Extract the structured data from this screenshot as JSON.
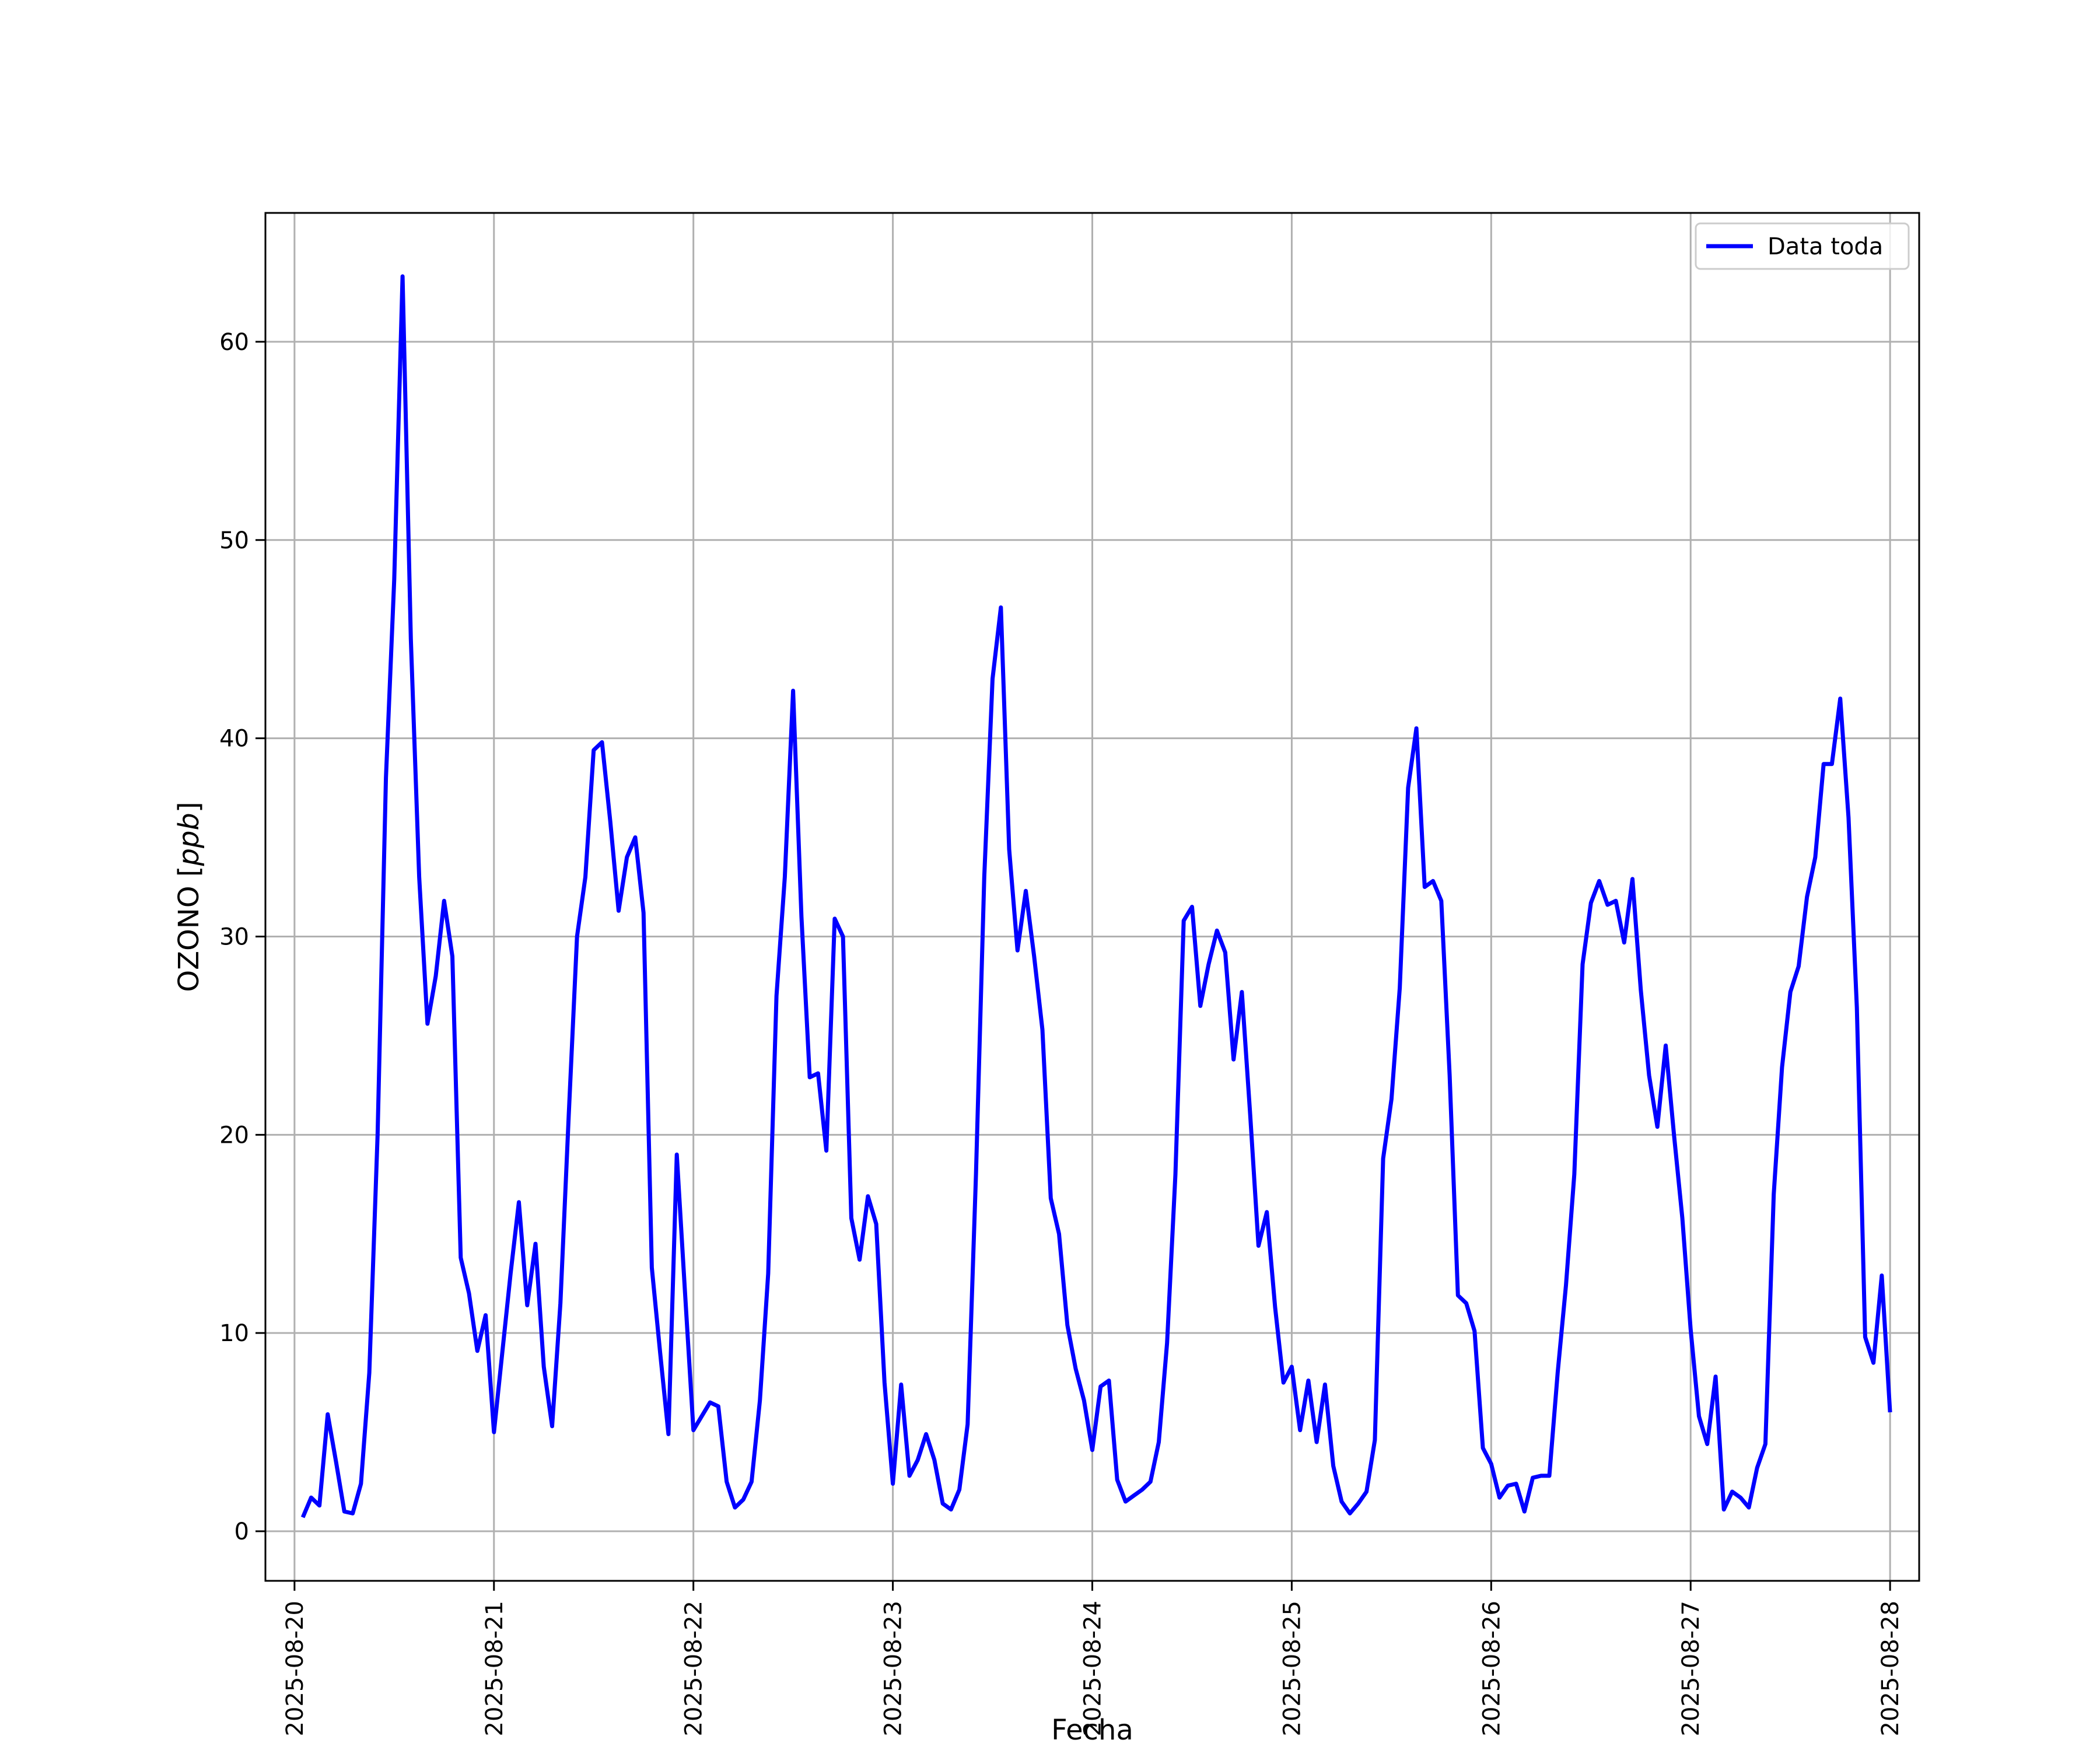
{
  "chart_data": {
    "type": "line",
    "title": "",
    "xlabel": "Fecha",
    "ylabel_prefix": "OZONO [",
    "ylabel_unit": "ppb",
    "ylabel_suffix": "]",
    "xlim": [
      "2025-08-19 20:30",
      "2025-08-28 03:30"
    ],
    "ylim": [
      -2.5,
      66.5
    ],
    "yticks": [
      0,
      10,
      20,
      30,
      40,
      50,
      60
    ],
    "xticks": [
      "2025-08-20",
      "2025-08-21",
      "2025-08-22",
      "2025-08-23",
      "2025-08-24",
      "2025-08-25",
      "2025-08-26",
      "2025-08-27",
      "2025-08-28"
    ],
    "grid": true,
    "legend": {
      "position": "top-right",
      "entries": [
        "Data toda"
      ]
    },
    "series": [
      {
        "name": "Data toda",
        "color": "#0000ff",
        "x": [
          "2025-08-20 01:00",
          "2025-08-20 02:00",
          "2025-08-20 03:00",
          "2025-08-20 04:00",
          "2025-08-20 05:00",
          "2025-08-20 06:00",
          "2025-08-20 07:00",
          "2025-08-20 08:00",
          "2025-08-20 09:00",
          "2025-08-20 10:00",
          "2025-08-20 11:00",
          "2025-08-20 12:00",
          "2025-08-20 13:00",
          "2025-08-20 14:00",
          "2025-08-20 15:00",
          "2025-08-20 16:00",
          "2025-08-20 17:00",
          "2025-08-20 18:00",
          "2025-08-20 19:00",
          "2025-08-20 20:00",
          "2025-08-20 21:00",
          "2025-08-20 22:00",
          "2025-08-20 23:00",
          "2025-08-21 00:00",
          "2025-08-21 01:00",
          "2025-08-21 02:00",
          "2025-08-21 03:00",
          "2025-08-21 04:00",
          "2025-08-21 05:00",
          "2025-08-21 06:00",
          "2025-08-21 07:00",
          "2025-08-21 08:00",
          "2025-08-21 09:00",
          "2025-08-21 10:00",
          "2025-08-21 11:00",
          "2025-08-21 12:00",
          "2025-08-21 13:00",
          "2025-08-21 14:00",
          "2025-08-21 15:00",
          "2025-08-21 16:00",
          "2025-08-21 17:00",
          "2025-08-21 18:00",
          "2025-08-21 19:00",
          "2025-08-21 20:00",
          "2025-08-21 21:00",
          "2025-08-21 22:00",
          "2025-08-21 23:00",
          "2025-08-22 00:00",
          "2025-08-22 01:00",
          "2025-08-22 02:00",
          "2025-08-22 03:00",
          "2025-08-22 04:00",
          "2025-08-22 05:00",
          "2025-08-22 06:00",
          "2025-08-22 07:00",
          "2025-08-22 08:00",
          "2025-08-22 09:00",
          "2025-08-22 10:00",
          "2025-08-22 11:00",
          "2025-08-22 12:00",
          "2025-08-22 13:00",
          "2025-08-22 14:00",
          "2025-08-22 15:00",
          "2025-08-22 16:00",
          "2025-08-22 17:00",
          "2025-08-22 18:00",
          "2025-08-22 19:00",
          "2025-08-22 20:00",
          "2025-08-22 21:00",
          "2025-08-22 22:00",
          "2025-08-22 23:00",
          "2025-08-23 00:00",
          "2025-08-23 01:00",
          "2025-08-23 02:00",
          "2025-08-23 03:00",
          "2025-08-23 04:00",
          "2025-08-23 05:00",
          "2025-08-23 06:00",
          "2025-08-23 07:00",
          "2025-08-23 08:00",
          "2025-08-23 09:00",
          "2025-08-23 10:00",
          "2025-08-23 11:00",
          "2025-08-23 12:00",
          "2025-08-23 13:00",
          "2025-08-23 14:00",
          "2025-08-23 15:00",
          "2025-08-23 16:00",
          "2025-08-23 17:00",
          "2025-08-23 18:00",
          "2025-08-23 19:00",
          "2025-08-23 20:00",
          "2025-08-23 21:00",
          "2025-08-23 22:00",
          "2025-08-23 23:00",
          "2025-08-24 00:00",
          "2025-08-24 01:00",
          "2025-08-24 02:00",
          "2025-08-24 03:00",
          "2025-08-24 04:00",
          "2025-08-24 05:00",
          "2025-08-24 06:00",
          "2025-08-24 07:00",
          "2025-08-24 08:00",
          "2025-08-24 09:00",
          "2025-08-24 10:00",
          "2025-08-24 11:00",
          "2025-08-24 12:00",
          "2025-08-24 13:00",
          "2025-08-24 14:00",
          "2025-08-24 15:00",
          "2025-08-24 16:00",
          "2025-08-24 17:00",
          "2025-08-24 18:00",
          "2025-08-24 19:00",
          "2025-08-24 20:00",
          "2025-08-24 21:00",
          "2025-08-24 22:00",
          "2025-08-24 23:00",
          "2025-08-25 00:00",
          "2025-08-25 01:00",
          "2025-08-25 02:00",
          "2025-08-25 03:00",
          "2025-08-25 04:00",
          "2025-08-25 05:00",
          "2025-08-25 06:00",
          "2025-08-25 07:00",
          "2025-08-25 08:00",
          "2025-08-25 09:00",
          "2025-08-25 10:00",
          "2025-08-25 11:00",
          "2025-08-25 12:00",
          "2025-08-25 13:00",
          "2025-08-25 14:00",
          "2025-08-25 15:00",
          "2025-08-25 16:00",
          "2025-08-25 17:00",
          "2025-08-25 18:00",
          "2025-08-25 19:00",
          "2025-08-25 20:00",
          "2025-08-25 21:00",
          "2025-08-25 22:00",
          "2025-08-25 23:00",
          "2025-08-26 00:00",
          "2025-08-26 01:00",
          "2025-08-26 02:00",
          "2025-08-26 03:00",
          "2025-08-26 04:00",
          "2025-08-26 05:00",
          "2025-08-26 06:00",
          "2025-08-26 07:00",
          "2025-08-26 08:00",
          "2025-08-26 09:00",
          "2025-08-26 10:00",
          "2025-08-26 11:00",
          "2025-08-26 12:00",
          "2025-08-26 13:00",
          "2025-08-26 14:00",
          "2025-08-26 15:00",
          "2025-08-26 16:00",
          "2025-08-26 17:00",
          "2025-08-26 18:00",
          "2025-08-26 19:00",
          "2025-08-26 20:00",
          "2025-08-26 21:00",
          "2025-08-26 22:00",
          "2025-08-26 23:00",
          "2025-08-27 00:00",
          "2025-08-27 01:00",
          "2025-08-27 02:00",
          "2025-08-27 03:00",
          "2025-08-27 04:00",
          "2025-08-27 05:00",
          "2025-08-27 06:00",
          "2025-08-27 07:00",
          "2025-08-27 08:00",
          "2025-08-27 09:00",
          "2025-08-27 10:00",
          "2025-08-27 11:00",
          "2025-08-27 12:00",
          "2025-08-27 13:00",
          "2025-08-27 14:00",
          "2025-08-27 15:00",
          "2025-08-27 16:00",
          "2025-08-27 17:00",
          "2025-08-27 18:00",
          "2025-08-27 19:00",
          "2025-08-27 20:00",
          "2025-08-27 21:00",
          "2025-08-27 22:00",
          "2025-08-27 23:00",
          "2025-08-28 00:00"
        ],
        "y": [
          0.7,
          1.7,
          1.3,
          5.9,
          3.5,
          1.0,
          0.9,
          2.4,
          8.0,
          20.0,
          38.0,
          48.0,
          63.3,
          45.0,
          33.0,
          25.6,
          28.0,
          31.8,
          29.0,
          13.8,
          12.0,
          9.1,
          10.9,
          5.0,
          9.0,
          13.0,
          16.6,
          11.4,
          14.5,
          8.3,
          5.3,
          11.5,
          21.0,
          30.0,
          33.0,
          39.4,
          39.8,
          35.8,
          31.3,
          34.0,
          35.0,
          31.2,
          13.3,
          9.0,
          4.9,
          19.0,
          12.0,
          5.1,
          5.8,
          6.5,
          6.3,
          2.5,
          1.2,
          1.6,
          2.5,
          6.6,
          13.0,
          27.0,
          33.0,
          42.4,
          31.0,
          22.9,
          23.1,
          19.2,
          30.9,
          30.0,
          15.8,
          13.7,
          16.9,
          15.5,
          7.5,
          2.4,
          7.4,
          2.8,
          3.6,
          4.9,
          3.6,
          1.4,
          1.1,
          2.1,
          5.4,
          18.0,
          33.0,
          43.0,
          46.6,
          34.4,
          29.3,
          32.3,
          29.0,
          25.3,
          16.8,
          15.0,
          10.4,
          8.2,
          6.6,
          4.1,
          7.3,
          7.6,
          2.6,
          1.5,
          1.8,
          2.1,
          2.5,
          4.5,
          9.5,
          18.0,
          30.8,
          31.5,
          26.5,
          28.6,
          30.3,
          29.2,
          23.8,
          27.2,
          21.0,
          14.4,
          16.1,
          11.3,
          7.5,
          8.3,
          5.1,
          7.6,
          4.5,
          7.4,
          3.3,
          1.5,
          0.9,
          1.4,
          2.0,
          4.6,
          18.8,
          21.8,
          27.4,
          37.5,
          40.5,
          32.5,
          32.8,
          31.8,
          23.0,
          11.9,
          11.5,
          10.1,
          4.2,
          3.4,
          1.7,
          2.3,
          2.4,
          1.0,
          2.7,
          2.8,
          2.8,
          8.0,
          12.4,
          18.0,
          28.6,
          31.7,
          32.8,
          31.6,
          31.8,
          29.7,
          32.9,
          27.3,
          23.0,
          20.4,
          24.5,
          20.0,
          15.8,
          10.2,
          5.8,
          4.4,
          7.8,
          1.1,
          2.0,
          1.7,
          1.2,
          3.2,
          4.4,
          17.0,
          23.4,
          27.2,
          28.5,
          32.0,
          34.0,
          38.7,
          38.7,
          42.0,
          36.0,
          26.4,
          9.8,
          8.5,
          12.9,
          6.0
        ]
      }
    ]
  }
}
